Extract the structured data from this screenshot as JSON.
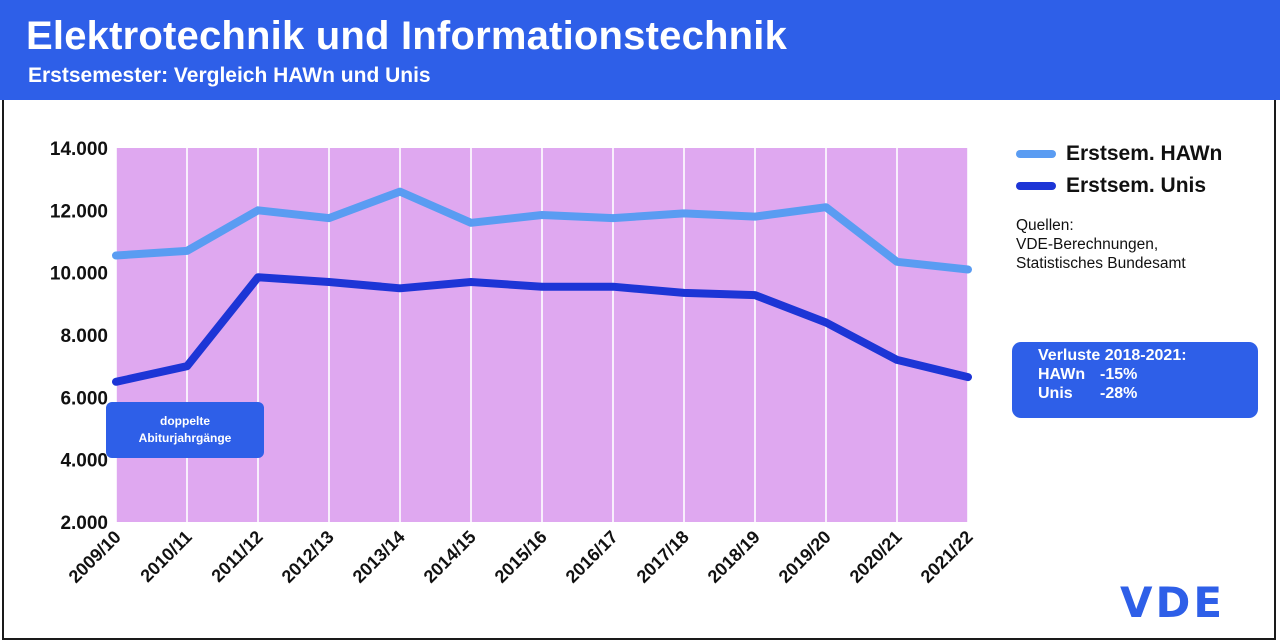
{
  "header": {
    "title": "Elektrotechnik und Informationstechnik",
    "subtitle": "Erstsemester: Vergleich HAWn und Unis"
  },
  "colors": {
    "header_bg": "#2e5fe8",
    "plot_bg": "#dfa8f0",
    "hawn_line": "#5a9cf2",
    "unis_line": "#1d35d6",
    "brand": "#2e5fe8"
  },
  "chart_data": {
    "type": "line",
    "title": "",
    "xlabel": "",
    "ylabel": "",
    "categories": [
      "2009/10",
      "2010/11",
      "2011/12",
      "2012/13",
      "2013/14",
      "2014/15",
      "2015/16",
      "2016/17",
      "2017/18",
      "2018/19",
      "2019/20",
      "2020/21",
      "2021/22"
    ],
    "y_ticks": [
      "2.000",
      "4.000",
      "6.000",
      "8.000",
      "10.000",
      "12.000",
      "14.000"
    ],
    "ylim": [
      2000,
      14000
    ],
    "grid": "vertical",
    "legend_position": "right",
    "series": [
      {
        "name": "Erstsem. HAWn",
        "color": "#5a9cf2",
        "values": [
          10550,
          10700,
          12000,
          11750,
          12600,
          11600,
          11850,
          11750,
          11900,
          11800,
          12100,
          10350,
          10100
        ]
      },
      {
        "name": "Erstsem. Unis",
        "color": "#1d35d6",
        "values": [
          6500,
          7000,
          9850,
          9700,
          9500,
          9700,
          9550,
          9550,
          9350,
          9280,
          8400,
          7200,
          6650
        ]
      }
    ]
  },
  "sources": {
    "label": "Quellen:",
    "lines": [
      "VDE-Berechnungen,",
      "Statistisches Bundesamt"
    ]
  },
  "note": {
    "line1": "doppelte",
    "line2": "Abiturjahrgänge"
  },
  "losses": {
    "title": "Verluste 2018-2021:",
    "rows": [
      {
        "label": "HAWn",
        "value": "-15%"
      },
      {
        "label": "Unis",
        "value": "-28%"
      }
    ]
  },
  "logo": "VDE"
}
